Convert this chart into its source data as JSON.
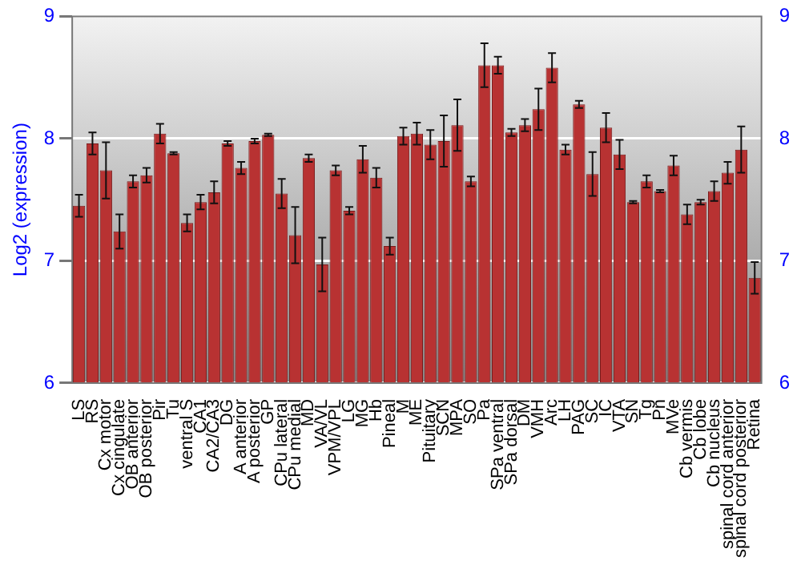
{
  "chart_data": {
    "type": "bar",
    "ylabel": "Log2 (expression)",
    "categories": [
      "LS",
      "RS",
      "Cx motor",
      "Cx cingulate",
      "OB anterior",
      "OB posterior",
      "Pir",
      "Tu",
      "ventral S",
      "CA1",
      "CA2/CA3",
      "DG",
      "A anterior",
      "A posterior",
      "GP",
      "CPu lateral",
      "CPu medial",
      "MD",
      "VA/VL",
      "VPM/VPL",
      "LG",
      "MG",
      "Hb",
      "Pineal",
      "M",
      "ME",
      "Pituitary",
      "SCN",
      "MPA",
      "SO",
      "Pa",
      "SPa ventral",
      "SPa dorsal",
      "DM",
      "VMH",
      "Arc",
      "LH",
      "PAG",
      "SC",
      "IC",
      "VTA",
      "SN",
      "Tg",
      "Pn",
      "MVe",
      "Cb vermis",
      "Cb lobe",
      "Cb nucleus",
      "spinal cord anterior",
      "spinal cord posterior",
      "Retina"
    ],
    "values": [
      7.45,
      7.96,
      7.74,
      7.24,
      7.65,
      7.7,
      8.04,
      7.88,
      7.31,
      7.48,
      7.56,
      7.96,
      7.76,
      7.98,
      8.03,
      7.55,
      7.21,
      7.84,
      6.97,
      7.74,
      7.41,
      7.83,
      7.68,
      7.12,
      8.02,
      8.04,
      7.95,
      7.98,
      8.11,
      7.65,
      8.6,
      8.6,
      8.05,
      8.11,
      8.24,
      8.58,
      7.91,
      8.28,
      7.71,
      8.09,
      7.87,
      7.48,
      7.65,
      7.57,
      7.78,
      7.38,
      7.48,
      7.57,
      7.72,
      7.91,
      6.86
    ],
    "errors": [
      0.09,
      0.09,
      0.23,
      0.14,
      0.05,
      0.06,
      0.08,
      0.01,
      0.07,
      0.06,
      0.09,
      0.02,
      0.05,
      0.02,
      0.01,
      0.12,
      0.23,
      0.03,
      0.22,
      0.04,
      0.03,
      0.11,
      0.08,
      0.07,
      0.07,
      0.09,
      0.12,
      0.21,
      0.21,
      0.04,
      0.18,
      0.07,
      0.03,
      0.05,
      0.17,
      0.12,
      0.04,
      0.03,
      0.18,
      0.12,
      0.12,
      0.01,
      0.05,
      0.01,
      0.08,
      0.08,
      0.02,
      0.08,
      0.09,
      0.19,
      0.13
    ],
    "color": "#b83232",
    "ylim": [
      6,
      9
    ],
    "yticks": [
      6,
      7,
      8,
      9
    ],
    "y2lim": [
      6,
      9
    ],
    "y2ticks": [
      6,
      7,
      8,
      9
    ],
    "grid": "y",
    "legend": false
  }
}
